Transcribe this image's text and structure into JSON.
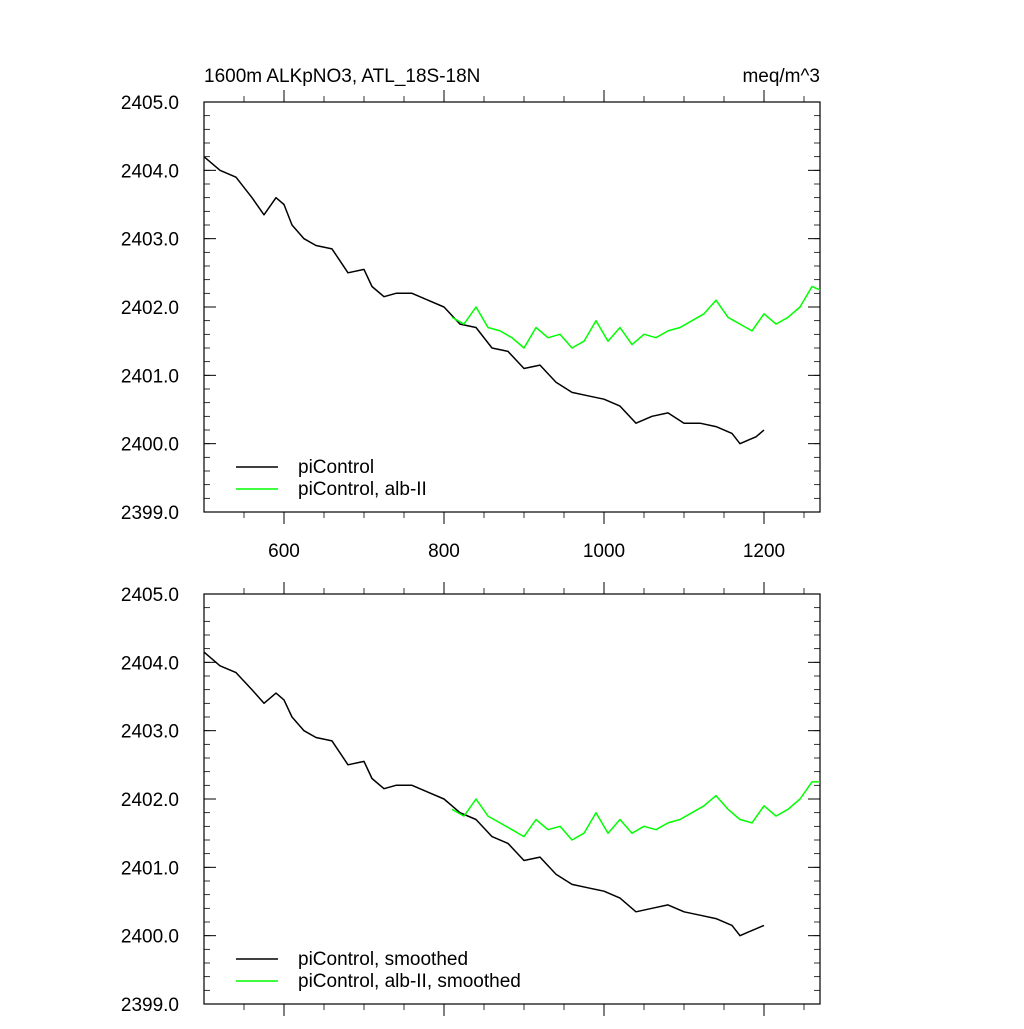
{
  "chart_data": [
    {
      "type": "line",
      "title": "1600m ALKpNO3, ATL_18S-18N",
      "units": "meq/m^3",
      "xlim": [
        500,
        1270
      ],
      "ylim": [
        2399.0,
        2405.0
      ],
      "x_ticks": [
        "600",
        "800",
        "1000",
        "1200"
      ],
      "y_ticks": [
        "2399.0",
        "2400.0",
        "2401.0",
        "2402.0",
        "2403.0",
        "2404.0",
        "2405.0"
      ],
      "grid": false,
      "legend_position": "bottom-left",
      "series": [
        {
          "name": "piControl",
          "color": "#000000",
          "x": [
            500,
            520,
            540,
            560,
            575,
            590,
            600,
            610,
            625,
            640,
            660,
            680,
            700,
            710,
            725,
            740,
            760,
            780,
            800,
            820,
            840,
            860,
            880,
            900,
            920,
            940,
            960,
            980,
            1000,
            1020,
            1040,
            1060,
            1080,
            1100,
            1120,
            1140,
            1160,
            1170,
            1180,
            1190,
            1200
          ],
          "y": [
            2404.2,
            2404.0,
            2403.9,
            2403.6,
            2403.35,
            2403.6,
            2403.5,
            2403.2,
            2403.0,
            2402.9,
            2402.85,
            2402.5,
            2402.55,
            2402.3,
            2402.15,
            2402.2,
            2402.2,
            2402.1,
            2402.0,
            2401.75,
            2401.7,
            2401.4,
            2401.35,
            2401.1,
            2401.15,
            2400.9,
            2400.75,
            2400.7,
            2400.65,
            2400.55,
            2400.3,
            2400.4,
            2400.45,
            2400.3,
            2400.3,
            2400.25,
            2400.15,
            2400.0,
            2400.05,
            2400.1,
            2400.2
          ]
        },
        {
          "name": "piControl, alb-II",
          "color": "#00ff00",
          "x": [
            810,
            825,
            840,
            855,
            870,
            885,
            900,
            915,
            930,
            945,
            960,
            975,
            990,
            1005,
            1020,
            1035,
            1050,
            1065,
            1080,
            1095,
            1110,
            1125,
            1140,
            1155,
            1170,
            1185,
            1200,
            1215,
            1230,
            1245,
            1260,
            1270
          ],
          "y": [
            2401.85,
            2401.75,
            2402.0,
            2401.7,
            2401.65,
            2401.55,
            2401.4,
            2401.7,
            2401.55,
            2401.6,
            2401.4,
            2401.5,
            2401.8,
            2401.5,
            2401.7,
            2401.45,
            2401.6,
            2401.55,
            2401.65,
            2401.7,
            2401.8,
            2401.9,
            2402.1,
            2401.85,
            2401.75,
            2401.65,
            2401.9,
            2401.75,
            2401.85,
            2402.0,
            2402.3,
            2402.25
          ]
        }
      ]
    },
    {
      "type": "line",
      "title": "",
      "xlim": [
        500,
        1270
      ],
      "ylim": [
        2399.0,
        2405.0
      ],
      "x_ticks": [],
      "y_ticks": [
        "2399.0",
        "2400.0",
        "2401.0",
        "2402.0",
        "2403.0",
        "2404.0",
        "2405.0"
      ],
      "grid": false,
      "legend_position": "bottom-left",
      "series": [
        {
          "name": "piControl, smoothed",
          "color": "#000000",
          "x": [
            500,
            520,
            540,
            560,
            575,
            590,
            600,
            610,
            625,
            640,
            660,
            680,
            700,
            710,
            725,
            740,
            760,
            780,
            800,
            820,
            840,
            860,
            880,
            900,
            920,
            940,
            960,
            980,
            1000,
            1020,
            1040,
            1060,
            1080,
            1100,
            1120,
            1140,
            1160,
            1170,
            1180,
            1190,
            1200
          ],
          "y": [
            2404.15,
            2403.95,
            2403.85,
            2403.6,
            2403.4,
            2403.55,
            2403.45,
            2403.2,
            2403.0,
            2402.9,
            2402.85,
            2402.5,
            2402.55,
            2402.3,
            2402.15,
            2402.2,
            2402.2,
            2402.1,
            2402.0,
            2401.8,
            2401.7,
            2401.45,
            2401.35,
            2401.1,
            2401.15,
            2400.9,
            2400.75,
            2400.7,
            2400.65,
            2400.55,
            2400.35,
            2400.4,
            2400.45,
            2400.35,
            2400.3,
            2400.25,
            2400.15,
            2400.0,
            2400.05,
            2400.1,
            2400.15
          ]
        },
        {
          "name": "piControl, alb-II, smoothed",
          "color": "#00ff00",
          "x": [
            810,
            825,
            840,
            855,
            870,
            885,
            900,
            915,
            930,
            945,
            960,
            975,
            990,
            1005,
            1020,
            1035,
            1050,
            1065,
            1080,
            1095,
            1110,
            1125,
            1140,
            1155,
            1170,
            1185,
            1200,
            1215,
            1230,
            1245,
            1260,
            1270
          ],
          "y": [
            2401.85,
            2401.75,
            2402.0,
            2401.75,
            2401.65,
            2401.55,
            2401.45,
            2401.7,
            2401.55,
            2401.6,
            2401.4,
            2401.5,
            2401.8,
            2401.5,
            2401.7,
            2401.5,
            2401.6,
            2401.55,
            2401.65,
            2401.7,
            2401.8,
            2401.9,
            2402.05,
            2401.85,
            2401.7,
            2401.65,
            2401.9,
            2401.75,
            2401.85,
            2402.0,
            2402.25,
            2402.25
          ]
        }
      ]
    }
  ]
}
